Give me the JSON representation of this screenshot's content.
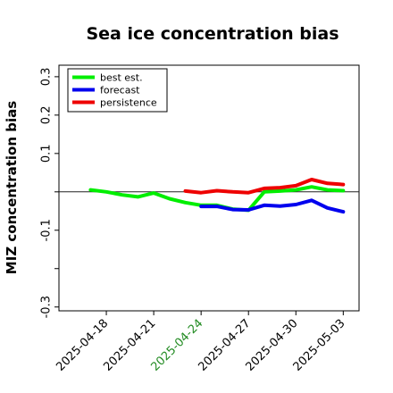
{
  "chart_data": {
    "type": "line",
    "title": "Sea ice concentration bias",
    "xlabel": "",
    "ylabel": "MIZ concentration bias",
    "xlim": [
      "2025-04-15",
      "2025-05-04"
    ],
    "ylim": [
      -0.31,
      0.33
    ],
    "yticks": [
      {
        "value": -0.3,
        "label": "-0.3"
      },
      {
        "value": -0.2,
        "label": ""
      },
      {
        "value": -0.1,
        "label": "-0.1"
      },
      {
        "value": 0.0,
        "label": ""
      },
      {
        "value": 0.1,
        "label": "0.1"
      },
      {
        "value": 0.2,
        "label": "0.2"
      },
      {
        "value": 0.3,
        "label": "0.3"
      }
    ],
    "xticks": [
      {
        "date": "2025-04-18",
        "label": "2025-04-18",
        "color": "#000000"
      },
      {
        "date": "2025-04-21",
        "label": "2025-04-21",
        "color": "#000000"
      },
      {
        "date": "2025-04-24",
        "label": "2025-04-24",
        "color": "#228B22"
      },
      {
        "date": "2025-04-27",
        "label": "2025-04-27",
        "color": "#000000"
      },
      {
        "date": "2025-04-30",
        "label": "2025-04-30",
        "color": "#000000"
      },
      {
        "date": "2025-05-03",
        "label": "2025-05-03",
        "color": "#000000"
      }
    ],
    "zero_line": true,
    "grid": false,
    "legend_position": "top-left",
    "series": [
      {
        "name": "best est.",
        "color": "#00ee00",
        "points": [
          {
            "x": "2025-04-17",
            "y": 0.005
          },
          {
            "x": "2025-04-18",
            "y": 0.0
          },
          {
            "x": "2025-04-19",
            "y": -0.008
          },
          {
            "x": "2025-04-20",
            "y": -0.013
          },
          {
            "x": "2025-04-21",
            "y": -0.003
          },
          {
            "x": "2025-04-22",
            "y": -0.018
          },
          {
            "x": "2025-04-23",
            "y": -0.028
          },
          {
            "x": "2025-04-24",
            "y": -0.035
          },
          {
            "x": "2025-04-25",
            "y": -0.035
          },
          {
            "x": "2025-04-26",
            "y": -0.045
          },
          {
            "x": "2025-04-27",
            "y": -0.048
          },
          {
            "x": "2025-04-28",
            "y": 0.0
          },
          {
            "x": "2025-04-29",
            "y": 0.002
          },
          {
            "x": "2025-04-30",
            "y": 0.005
          },
          {
            "x": "2025-05-01",
            "y": 0.013
          },
          {
            "x": "2025-05-02",
            "y": 0.005
          },
          {
            "x": "2025-05-03",
            "y": 0.003
          }
        ]
      },
      {
        "name": "forecast",
        "color": "#0000ee",
        "points": [
          {
            "x": "2025-04-24",
            "y": -0.038
          },
          {
            "x": "2025-04-25",
            "y": -0.038
          },
          {
            "x": "2025-04-26",
            "y": -0.046
          },
          {
            "x": "2025-04-27",
            "y": -0.047
          },
          {
            "x": "2025-04-28",
            "y": -0.035
          },
          {
            "x": "2025-04-29",
            "y": -0.037
          },
          {
            "x": "2025-04-30",
            "y": -0.033
          },
          {
            "x": "2025-05-01",
            "y": -0.022
          },
          {
            "x": "2025-05-02",
            "y": -0.042
          },
          {
            "x": "2025-05-03",
            "y": -0.052
          }
        ]
      },
      {
        "name": "persistence",
        "color": "#ee0000",
        "points": [
          {
            "x": "2025-04-23",
            "y": 0.002
          },
          {
            "x": "2025-04-24",
            "y": -0.002
          },
          {
            "x": "2025-04-25",
            "y": 0.003
          },
          {
            "x": "2025-04-26",
            "y": 0.0
          },
          {
            "x": "2025-04-27",
            "y": -0.002
          },
          {
            "x": "2025-04-28",
            "y": 0.009
          },
          {
            "x": "2025-04-29",
            "y": 0.011
          },
          {
            "x": "2025-04-30",
            "y": 0.016
          },
          {
            "x": "2025-05-01",
            "y": 0.032
          },
          {
            "x": "2025-05-02",
            "y": 0.022
          },
          {
            "x": "2025-05-03",
            "y": 0.019
          }
        ]
      }
    ]
  }
}
